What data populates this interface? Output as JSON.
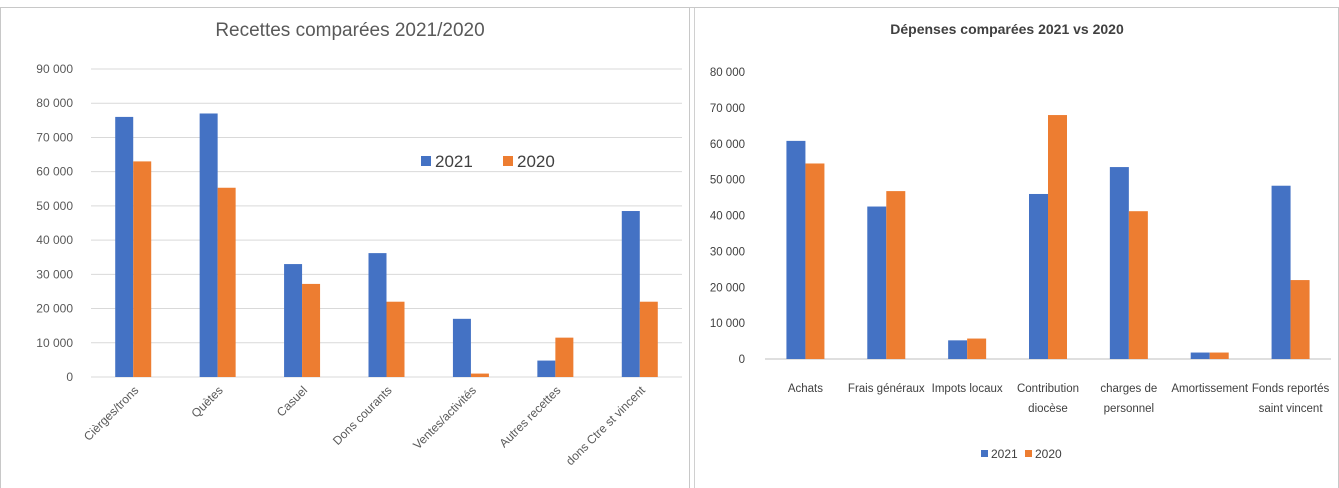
{
  "chart_data": [
    {
      "type": "bar",
      "title": "Recettes comparées 2021/2020",
      "categories": [
        "Cièrges/trons",
        "Quètes",
        "Casuel",
        "Dons courants",
        "Ventes/activités",
        "Autres recettes",
        "dons Ctre st vincent"
      ],
      "series": [
        {
          "name": "2021",
          "color": "#4472c4",
          "values": [
            76000,
            77000,
            33000,
            36200,
            17000,
            4800,
            48500
          ]
        },
        {
          "name": "2020",
          "color": "#ed7d31",
          "values": [
            63000,
            55300,
            27200,
            22000,
            1000,
            11500,
            22000
          ]
        }
      ],
      "ylim": [
        0,
        90000
      ],
      "yticks": [
        "0",
        "10 000",
        "20 000",
        "30 000",
        "40 000",
        "50 000",
        "60 000",
        "70 000",
        "80 000",
        "90 000"
      ],
      "grid": true,
      "legend_position": "inside-right"
    },
    {
      "type": "bar",
      "title": "Dépenses comparées 2021 vs 2020",
      "categories": [
        [
          "Achats"
        ],
        [
          "Frais généraux"
        ],
        [
          "Impots locaux"
        ],
        [
          "Contribution",
          "diocèse"
        ],
        [
          "charges de",
          "personnel"
        ],
        [
          "Amortissement"
        ],
        [
          "Fonds reportés",
          "saint vincent"
        ]
      ],
      "series": [
        {
          "name": "2021",
          "color": "#4472c4",
          "values": [
            60800,
            42500,
            5200,
            46000,
            53500,
            1800,
            48300
          ]
        },
        {
          "name": "2020",
          "color": "#ed7d31",
          "values": [
            54500,
            46800,
            5700,
            68000,
            41200,
            1800,
            22000
          ]
        }
      ],
      "ylim": [
        0,
        80000
      ],
      "yticks": [
        "0",
        "10 000",
        "20 000",
        "30 000",
        "40 000",
        "50 000",
        "60 000",
        "70 000",
        "80 000"
      ],
      "grid": false,
      "legend_position": "bottom"
    }
  ]
}
